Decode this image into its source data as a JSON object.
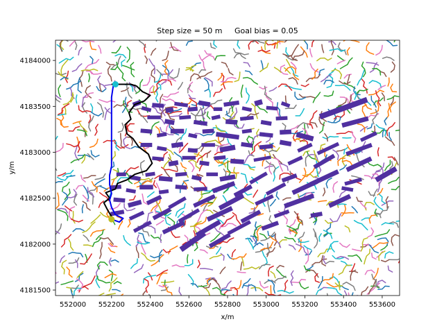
{
  "chart_data": {
    "type": "scatter",
    "title": "Step size = 50 m     Goal bias = 0.05",
    "xlabel": "x/m",
    "ylabel": "y/m",
    "xlim": [
      551910,
      553690
    ],
    "ylim": [
      4181440,
      4184220
    ],
    "xticks": [
      552000,
      552200,
      552400,
      552600,
      552800,
      553000,
      553200,
      553400,
      553600
    ],
    "yticks": [
      4181500,
      4182000,
      4182500,
      4183000,
      4183500,
      4184000
    ],
    "grid": false,
    "tree_colors": [
      "#1f77b4",
      "#ff7f0e",
      "#2ca02c",
      "#d62728",
      "#9467bd",
      "#8c564b",
      "#e377c2",
      "#7f7f7f",
      "#bcbd22",
      "#17becf"
    ],
    "obstacle_color": "#5030a0",
    "start_point": {
      "x": 552200,
      "y": 4182270,
      "color": "#bcbd22"
    },
    "goal_point": {
      "x": 552220,
      "y": 4183740,
      "color": "#17becf"
    },
    "final_path": {
      "color": "#0000ee",
      "points": [
        [
          552200,
          4182270
        ],
        [
          552240,
          4182240
        ],
        [
          552260,
          4182280
        ],
        [
          552220,
          4182320
        ],
        [
          552200,
          4182400
        ],
        [
          552190,
          4182480
        ],
        [
          552200,
          4182550
        ],
        [
          552190,
          4182650
        ],
        [
          552190,
          4182750
        ],
        [
          552200,
          4182850
        ],
        [
          552200,
          4183000
        ],
        [
          552200,
          4183200
        ],
        [
          552200,
          4183400
        ],
        [
          552200,
          4183600
        ],
        [
          552210,
          4183740
        ]
      ]
    },
    "boundary_path": {
      "color": "#000000",
      "points": [
        [
          552200,
          4183740
        ],
        [
          552260,
          4183740
        ],
        [
          552300,
          4183740
        ],
        [
          552330,
          4183720
        ],
        [
          552360,
          4183660
        ],
        [
          552400,
          4183620
        ],
        [
          552370,
          4183560
        ],
        [
          552320,
          4183520
        ],
        [
          552290,
          4183430
        ],
        [
          552300,
          4183360
        ],
        [
          552270,
          4183300
        ],
        [
          552280,
          4183200
        ],
        [
          552310,
          4183150
        ],
        [
          552340,
          4183060
        ],
        [
          552390,
          4182980
        ],
        [
          552410,
          4182880
        ],
        [
          552380,
          4182800
        ],
        [
          552320,
          4182760
        ],
        [
          552280,
          4182700
        ],
        [
          552230,
          4182660
        ],
        [
          552220,
          4182600
        ],
        [
          552170,
          4182560
        ],
        [
          552190,
          4182500
        ],
        [
          552160,
          4182450
        ],
        [
          552180,
          4182370
        ],
        [
          552200,
          4182300
        ]
      ]
    },
    "obstacles": [
      {
        "cx": 552330,
        "cy": 4183530,
        "w": 40,
        "h": 50,
        "a": -20
      },
      {
        "cx": 552380,
        "cy": 4183470,
        "w": 50,
        "h": 40,
        "a": 15
      },
      {
        "cx": 552440,
        "cy": 4183510,
        "w": 60,
        "h": 45,
        "a": 5
      },
      {
        "cx": 552500,
        "cy": 4183460,
        "w": 40,
        "h": 50,
        "a": -10
      },
      {
        "cx": 552560,
        "cy": 4183520,
        "w": 70,
        "h": 40,
        "a": 8
      },
      {
        "cx": 552620,
        "cy": 4183470,
        "w": 50,
        "h": 45,
        "a": -5
      },
      {
        "cx": 552680,
        "cy": 4183530,
        "w": 60,
        "h": 50,
        "a": 10
      },
      {
        "cx": 552750,
        "cy": 4183470,
        "w": 45,
        "h": 40,
        "a": 0
      },
      {
        "cx": 552820,
        "cy": 4183530,
        "w": 80,
        "h": 45,
        "a": -8
      },
      {
        "cx": 552900,
        "cy": 4183470,
        "w": 50,
        "h": 40,
        "a": 12
      },
      {
        "cx": 552960,
        "cy": 4183540,
        "w": 40,
        "h": 55,
        "a": -15
      },
      {
        "cx": 553030,
        "cy": 4183480,
        "w": 60,
        "h": 40,
        "a": 5
      },
      {
        "cx": 553100,
        "cy": 4183520,
        "w": 45,
        "h": 40,
        "a": 20
      },
      {
        "cx": 553400,
        "cy": 4183480,
        "w": 260,
        "h": 60,
        "a": -20
      },
      {
        "cx": 552420,
        "cy": 4183380,
        "w": 70,
        "h": 40,
        "a": 0
      },
      {
        "cx": 552500,
        "cy": 4183330,
        "w": 50,
        "h": 50,
        "a": 10
      },
      {
        "cx": 552580,
        "cy": 4183380,
        "w": 60,
        "h": 40,
        "a": -5
      },
      {
        "cx": 552660,
        "cy": 4183320,
        "w": 70,
        "h": 45,
        "a": 8
      },
      {
        "cx": 552740,
        "cy": 4183380,
        "w": 45,
        "h": 40,
        "a": -12
      },
      {
        "cx": 552820,
        "cy": 4183330,
        "w": 60,
        "h": 50,
        "a": 4
      },
      {
        "cx": 552900,
        "cy": 4183370,
        "w": 70,
        "h": 40,
        "a": -6
      },
      {
        "cx": 553000,
        "cy": 4183320,
        "w": 55,
        "h": 45,
        "a": 10
      },
      {
        "cx": 553080,
        "cy": 4183370,
        "w": 60,
        "h": 40,
        "a": -3
      },
      {
        "cx": 553460,
        "cy": 4183330,
        "w": 140,
        "h": 50,
        "a": -15
      },
      {
        "cx": 552380,
        "cy": 4183230,
        "w": 60,
        "h": 45,
        "a": 5
      },
      {
        "cx": 552460,
        "cy": 4183190,
        "w": 50,
        "h": 40,
        "a": -10
      },
      {
        "cx": 552540,
        "cy": 4183230,
        "w": 70,
        "h": 50,
        "a": 0
      },
      {
        "cx": 552620,
        "cy": 4183180,
        "w": 45,
        "h": 40,
        "a": 12
      },
      {
        "cx": 552700,
        "cy": 4183230,
        "w": 60,
        "h": 45,
        "a": -4
      },
      {
        "cx": 552800,
        "cy": 4183180,
        "w": 120,
        "h": 50,
        "a": 8
      },
      {
        "cx": 552900,
        "cy": 4183230,
        "w": 50,
        "h": 40,
        "a": -8
      },
      {
        "cx": 553000,
        "cy": 4183190,
        "w": 70,
        "h": 45,
        "a": 6
      },
      {
        "cx": 553100,
        "cy": 4183220,
        "w": 60,
        "h": 50,
        "a": -3
      },
      {
        "cx": 553200,
        "cy": 4183170,
        "w": 90,
        "h": 55,
        "a": 15
      },
      {
        "cx": 553530,
        "cy": 4183170,
        "w": 90,
        "h": 40,
        "a": -25
      },
      {
        "cx": 552380,
        "cy": 4183080,
        "w": 60,
        "h": 45,
        "a": 0
      },
      {
        "cx": 552460,
        "cy": 4183040,
        "w": 50,
        "h": 40,
        "a": 10
      },
      {
        "cx": 552540,
        "cy": 4183080,
        "w": 60,
        "h": 50,
        "a": -8
      },
      {
        "cx": 552620,
        "cy": 4183020,
        "w": 50,
        "h": 45,
        "a": 5
      },
      {
        "cx": 552700,
        "cy": 4183080,
        "w": 70,
        "h": 40,
        "a": 0
      },
      {
        "cx": 552800,
        "cy": 4183040,
        "w": 80,
        "h": 55,
        "a": -10
      },
      {
        "cx": 552900,
        "cy": 4183080,
        "w": 60,
        "h": 45,
        "a": 8
      },
      {
        "cx": 553000,
        "cy": 4183060,
        "w": 70,
        "h": 45,
        "a": -5
      },
      {
        "cx": 553100,
        "cy": 4183100,
        "w": 60,
        "h": 50,
        "a": 10
      },
      {
        "cx": 553200,
        "cy": 4183050,
        "w": 80,
        "h": 40,
        "a": -25
      },
      {
        "cx": 553320,
        "cy": 4183040,
        "w": 120,
        "h": 40,
        "a": -25
      },
      {
        "cx": 553480,
        "cy": 4183030,
        "w": 140,
        "h": 45,
        "a": -20
      },
      {
        "cx": 552440,
        "cy": 4182930,
        "w": 60,
        "h": 40,
        "a": 5
      },
      {
        "cx": 552520,
        "cy": 4182880,
        "w": 50,
        "h": 50,
        "a": -10
      },
      {
        "cx": 552600,
        "cy": 4182940,
        "w": 70,
        "h": 40,
        "a": 0
      },
      {
        "cx": 552680,
        "cy": 4182880,
        "w": 50,
        "h": 45,
        "a": 8
      },
      {
        "cx": 552760,
        "cy": 4182940,
        "w": 60,
        "h": 40,
        "a": -6
      },
      {
        "cx": 552850,
        "cy": 4182900,
        "w": 70,
        "h": 50,
        "a": 4
      },
      {
        "cx": 552980,
        "cy": 4182930,
        "w": 90,
        "h": 35,
        "a": -10
      },
      {
        "cx": 553150,
        "cy": 4182910,
        "w": 80,
        "h": 40,
        "a": -25
      },
      {
        "cx": 553300,
        "cy": 4182900,
        "w": 120,
        "h": 45,
        "a": -30
      },
      {
        "cx": 553480,
        "cy": 4182870,
        "w": 140,
        "h": 50,
        "a": -25
      },
      {
        "cx": 553620,
        "cy": 4182760,
        "w": 120,
        "h": 55,
        "a": -30
      },
      {
        "cx": 552250,
        "cy": 4182760,
        "w": 50,
        "h": 40,
        "a": 0
      },
      {
        "cx": 552320,
        "cy": 4182720,
        "w": 60,
        "h": 45,
        "a": 10
      },
      {
        "cx": 552400,
        "cy": 4182760,
        "w": 50,
        "h": 40,
        "a": -8
      },
      {
        "cx": 552480,
        "cy": 4182710,
        "w": 70,
        "h": 50,
        "a": 5
      },
      {
        "cx": 552560,
        "cy": 4182760,
        "w": 60,
        "h": 40,
        "a": -5
      },
      {
        "cx": 552640,
        "cy": 4182720,
        "w": 50,
        "h": 45,
        "a": 12
      },
      {
        "cx": 552720,
        "cy": 4182760,
        "w": 60,
        "h": 40,
        "a": 0
      },
      {
        "cx": 552800,
        "cy": 4182720,
        "w": 80,
        "h": 50,
        "a": -10
      },
      {
        "cx": 552960,
        "cy": 4182720,
        "w": 100,
        "h": 40,
        "a": -30
      },
      {
        "cx": 553120,
        "cy": 4182720,
        "w": 80,
        "h": 45,
        "a": -20
      },
      {
        "cx": 553300,
        "cy": 4182720,
        "w": 160,
        "h": 50,
        "a": -25
      },
      {
        "cx": 553450,
        "cy": 4182680,
        "w": 90,
        "h": 40,
        "a": -15
      },
      {
        "cx": 552220,
        "cy": 4182620,
        "w": 60,
        "h": 45,
        "a": -5
      },
      {
        "cx": 552300,
        "cy": 4182580,
        "w": 50,
        "h": 40,
        "a": 10
      },
      {
        "cx": 552380,
        "cy": 4182620,
        "w": 70,
        "h": 50,
        "a": 0
      },
      {
        "cx": 552470,
        "cy": 4182570,
        "w": 50,
        "h": 40,
        "a": -8
      },
      {
        "cx": 552560,
        "cy": 4182620,
        "w": 60,
        "h": 45,
        "a": 5
      },
      {
        "cx": 552660,
        "cy": 4182600,
        "w": 70,
        "h": 40,
        "a": -3
      },
      {
        "cx": 552780,
        "cy": 4182620,
        "w": 120,
        "h": 50,
        "a": -20
      },
      {
        "cx": 552880,
        "cy": 4182580,
        "w": 100,
        "h": 45,
        "a": -28
      },
      {
        "cx": 553050,
        "cy": 4182600,
        "w": 110,
        "h": 40,
        "a": -28
      },
      {
        "cx": 553200,
        "cy": 4182620,
        "w": 140,
        "h": 50,
        "a": -25
      },
      {
        "cx": 553420,
        "cy": 4182600,
        "w": 60,
        "h": 40,
        "a": 10
      },
      {
        "cx": 552240,
        "cy": 4182480,
        "w": 60,
        "h": 45,
        "a": 5
      },
      {
        "cx": 552320,
        "cy": 4182440,
        "w": 70,
        "h": 50,
        "a": -15
      },
      {
        "cx": 552420,
        "cy": 4182480,
        "w": 80,
        "h": 45,
        "a": -25
      },
      {
        "cx": 552540,
        "cy": 4182450,
        "w": 100,
        "h": 40,
        "a": -30
      },
      {
        "cx": 552680,
        "cy": 4182470,
        "w": 120,
        "h": 45,
        "a": -25
      },
      {
        "cx": 552820,
        "cy": 4182460,
        "w": 140,
        "h": 50,
        "a": -28
      },
      {
        "cx": 552990,
        "cy": 4182480,
        "w": 100,
        "h": 40,
        "a": -25
      },
      {
        "cx": 553170,
        "cy": 4182470,
        "w": 160,
        "h": 50,
        "a": -20
      },
      {
        "cx": 553380,
        "cy": 4182470,
        "w": 120,
        "h": 50,
        "a": -25
      },
      {
        "cx": 552230,
        "cy": 4182340,
        "w": 70,
        "h": 45,
        "a": -10
      },
      {
        "cx": 552330,
        "cy": 4182310,
        "w": 80,
        "h": 40,
        "a": -25
      },
      {
        "cx": 552460,
        "cy": 4182330,
        "w": 100,
        "h": 45,
        "a": -28
      },
      {
        "cx": 552600,
        "cy": 4182310,
        "w": 120,
        "h": 40,
        "a": -30
      },
      {
        "cx": 552760,
        "cy": 4182330,
        "w": 140,
        "h": 50,
        "a": -25
      },
      {
        "cx": 552920,
        "cy": 4182300,
        "w": 110,
        "h": 45,
        "a": -28
      },
      {
        "cx": 553080,
        "cy": 4182330,
        "w": 80,
        "h": 40,
        "a": -20
      },
      {
        "cx": 553260,
        "cy": 4182320,
        "w": 60,
        "h": 45,
        "a": -10
      },
      {
        "cx": 552360,
        "cy": 4182190,
        "w": 100,
        "h": 40,
        "a": -28
      },
      {
        "cx": 552520,
        "cy": 4182180,
        "w": 120,
        "h": 45,
        "a": -25
      },
      {
        "cx": 552700,
        "cy": 4182170,
        "w": 140,
        "h": 50,
        "a": -30
      },
      {
        "cx": 552860,
        "cy": 4182180,
        "w": 130,
        "h": 40,
        "a": -28
      },
      {
        "cx": 553020,
        "cy": 4182200,
        "w": 90,
        "h": 45,
        "a": -20
      },
      {
        "cx": 552620,
        "cy": 4182030,
        "w": 150,
        "h": 60,
        "a": -35
      },
      {
        "cx": 552760,
        "cy": 4182040,
        "w": 120,
        "h": 45,
        "a": -30
      }
    ]
  }
}
